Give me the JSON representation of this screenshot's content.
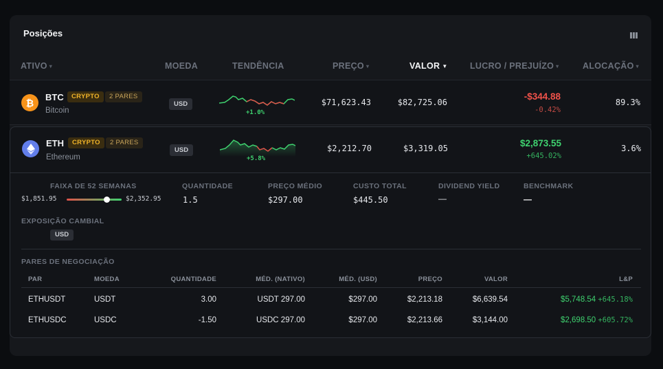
{
  "panel": {
    "title": "Posições"
  },
  "columns": {
    "ativo": "ATIVO",
    "moeda": "MOEDA",
    "tendencia": "TENDÊNCIA",
    "preco": "PREÇO",
    "valor": "VALOR",
    "lucro": "LUCRO / PREJUÍZO",
    "alocacao": "ALOCAÇÃO"
  },
  "positions": [
    {
      "symbol": "BTC",
      "badge": "CRYPTO",
      "pairs": "2 PARES",
      "name": "Bitcoin",
      "currency": "USD",
      "trend_pct": "+1.0%",
      "price": "$71,623.43",
      "value": "$82,725.06",
      "pnl": "-$344.88",
      "pnl_pct": "-0.42%",
      "allocation": "89.3%",
      "icon": "bitcoin-icon",
      "color": "#f7931a"
    },
    {
      "symbol": "ETH",
      "badge": "CRYPTO",
      "pairs": "2 PARES",
      "name": "Ethereum",
      "currency": "USD",
      "trend_pct": "+5.8%",
      "price": "$2,212.70",
      "value": "$3,319.05",
      "pnl": "$2,873.55",
      "pnl_pct": "+645.02%",
      "allocation": "3.6%",
      "icon": "ethereum-icon",
      "color": "#627eea"
    }
  ],
  "details": {
    "range_label": "FAIXA DE 52 SEMANAS",
    "range_low": "$1,851.95",
    "range_high": "$2,352.95",
    "quantity_label": "QUANTIDADE",
    "quantity": "1.5",
    "avg_label": "PREÇO MÉDIO",
    "avg": "$297.00",
    "cost_label": "CUSTO TOTAL",
    "cost": "$445.50",
    "dividend_label": "DIVIDEND YIELD",
    "dividend": "—",
    "benchmark_label": "BENCHMARK",
    "benchmark": "—",
    "fx_label": "EXPOSIÇÃO CAMBIAL",
    "fx_currency": "USD"
  },
  "pairs": {
    "title": "PARES DE NEGOCIAÇÃO",
    "headers": [
      "PAR",
      "MOEDA",
      "QUANTIDADE",
      "MÉD. (NATIVO)",
      "MÉD. (USD)",
      "PREÇO",
      "VALOR",
      "L&P"
    ],
    "rows": [
      {
        "pair": "ETHUSDT",
        "currency": "USDT",
        "qty": "3.00",
        "avg_native": "USDT 297.00",
        "avg_usd": "$297.00",
        "price": "$2,213.18",
        "value": "$6,639.54",
        "pnl": "$5,748.54",
        "pnl_pct": "+645.18%"
      },
      {
        "pair": "ETHUSDC",
        "currency": "USDC",
        "qty": "-1.50",
        "avg_native": "USDC 297.00",
        "avg_usd": "$297.00",
        "price": "$2,213.66",
        "value": "$3,144.00",
        "pnl": "$2,698.50",
        "pnl_pct": "+605.72%"
      }
    ]
  }
}
